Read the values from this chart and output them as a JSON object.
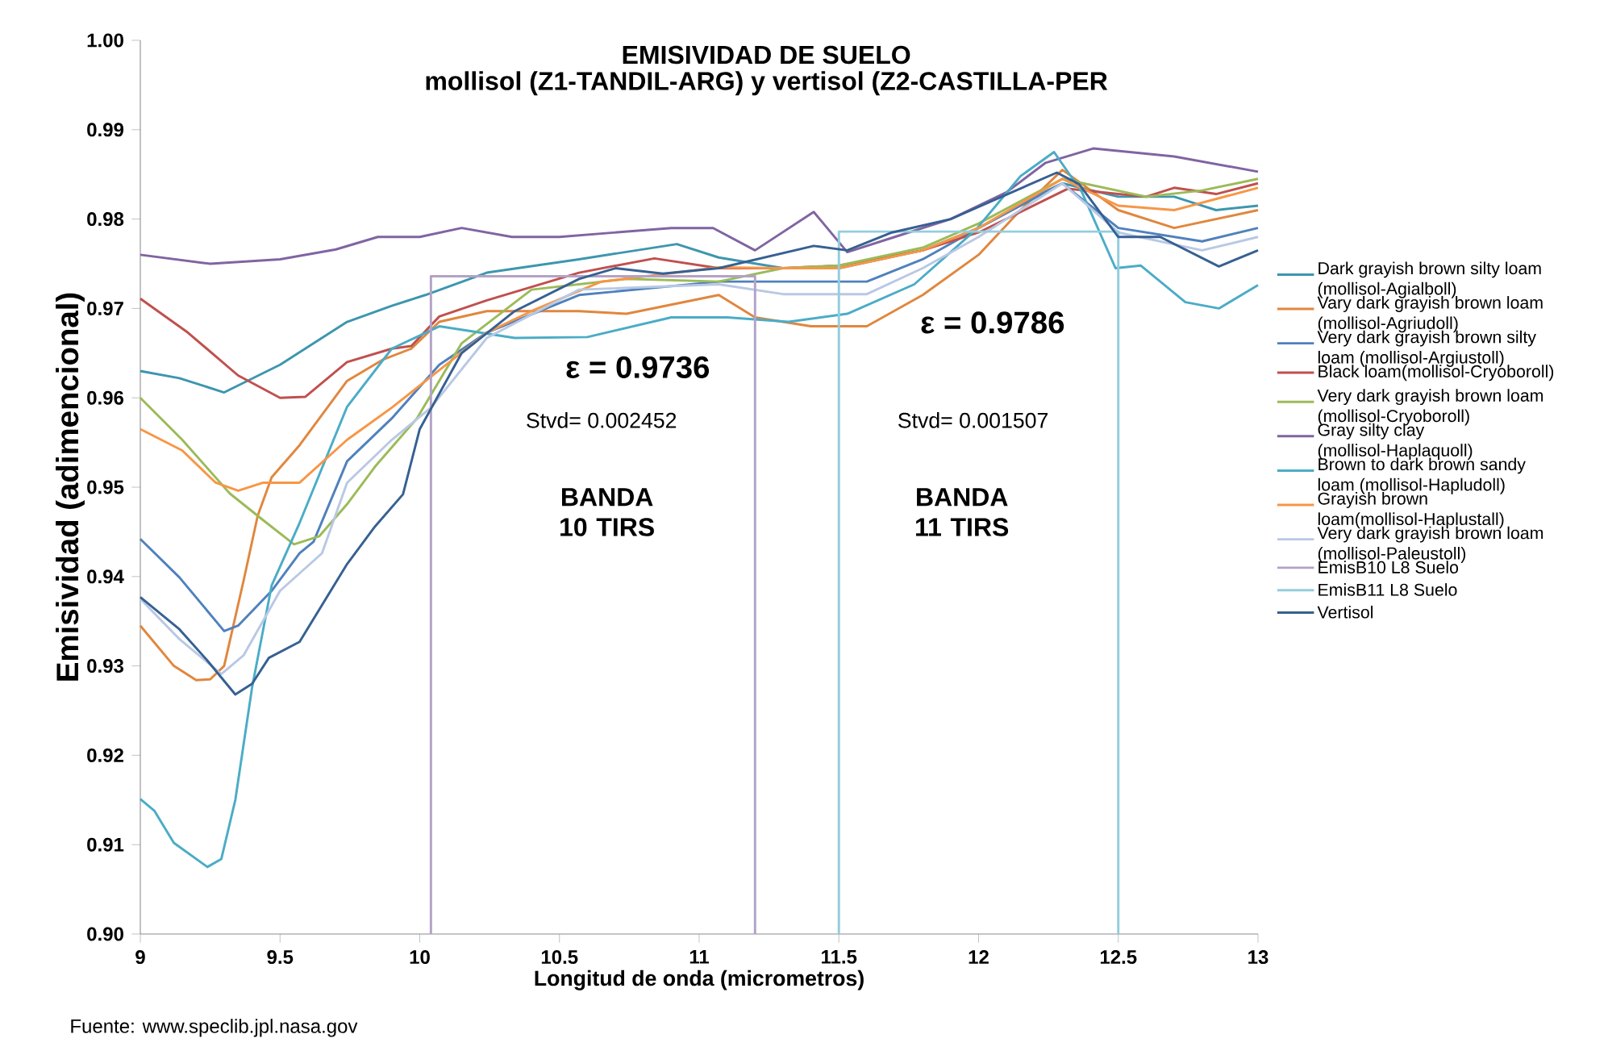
{
  "chart_data": {
    "type": "line",
    "title": "EMISIVIDAD DE SUELO",
    "subtitle": "mollisol (Z1-TANDIL-ARG) y vertisol (Z2-CASTILLA-PER",
    "xlabel": "Longitud de onda (micrometros)",
    "ylabel": "Emisividad (adimencional)",
    "xlim": [
      9,
      13
    ],
    "xticks": [
      9,
      9.5,
      10,
      10.5,
      11,
      11.5,
      12,
      12.5,
      13
    ],
    "ylim": [
      0.9,
      1.0
    ],
    "yticks": [
      {
        "value": 0.9,
        "label": "0.90"
      },
      {
        "value": 0.91,
        "label": "0.91"
      },
      {
        "value": 0.92,
        "label": "0.92"
      },
      {
        "value": 0.93,
        "label": "0.93"
      },
      {
        "value": 0.94,
        "label": "0.94"
      },
      {
        "value": 0.95,
        "label": "0.95"
      },
      {
        "value": 0.96,
        "label": "0.96"
      },
      {
        "value": 0.97,
        "label": "0.97"
      },
      {
        "value": 0.98,
        "label": "0.98"
      },
      {
        "value": 0.99,
        "label": "0.99"
      },
      {
        "value": 1.0,
        "label": "1.00"
      }
    ],
    "legend": "right",
    "marker": "none",
    "grid": false,
    "annotations": [
      {
        "text": "ε = 0.9736",
        "x": 10.78,
        "y": 0.9736
      },
      {
        "text": "ε = 0.9786",
        "x": 12.05,
        "y": 0.9786
      },
      "Stvd= 0.002452",
      "Stvd= 0.001507",
      "BANDA 10 TIRS",
      "BANDA 11 TIRS",
      "Fuente: www.speclib.jpl.nasa.gov"
    ],
    "series": [
      {
        "name": "Dark grayish brown silty loam (mollisol-Agialboll)",
        "color": "#3d96ae",
        "x": [
          9,
          9.14,
          9.3,
          9.5,
          9.74,
          9.9,
          10.02,
          10.24,
          10.57,
          10.92,
          11.07,
          11.3,
          11.5,
          11.8,
          12,
          12.2,
          12.3,
          12.5,
          12.7,
          12.85,
          13
        ],
        "values": [
          0.963,
          0.9622,
          0.9606,
          0.9637,
          0.9685,
          0.9703,
          0.9715,
          0.974,
          0.9755,
          0.9772,
          0.9757,
          0.9745,
          0.9745,
          0.9765,
          0.979,
          0.9825,
          0.984,
          0.9825,
          0.9825,
          0.981,
          0.9815
        ]
      },
      {
        "name": "Vary dark grayish brown loam (mollisol-Agriudoll)",
        "color": "#e0873e",
        "x": [
          9,
          9.12,
          9.2,
          9.25,
          9.3,
          9.37,
          9.42,
          9.47,
          9.57,
          9.74,
          9.87,
          9.97,
          10.07,
          10.24,
          10.57,
          10.74,
          11.07,
          11.2,
          11.4,
          11.6,
          11.8,
          12,
          12.15,
          12.3,
          12.5,
          12.7,
          13
        ],
        "values": [
          0.9345,
          0.93,
          0.9284,
          0.9285,
          0.93,
          0.9396,
          0.9468,
          0.9511,
          0.9547,
          0.9619,
          0.9643,
          0.9655,
          0.9685,
          0.9697,
          0.9697,
          0.9694,
          0.9715,
          0.969,
          0.968,
          0.968,
          0.9715,
          0.976,
          0.981,
          0.9855,
          0.981,
          0.979,
          0.981
        ]
      },
      {
        "name": "Very dark grayish brown silty loam  (mollisol-Argiustoll)",
        "color": "#4f81bd",
        "x": [
          9,
          9.14,
          9.3,
          9.35,
          9.47,
          9.57,
          9.62,
          9.74,
          9.9,
          10.07,
          10.24,
          10.57,
          11.07,
          11.3,
          11.6,
          11.8,
          12,
          12.3,
          12.5,
          12.8,
          13
        ],
        "values": [
          0.9442,
          0.9399,
          0.9339,
          0.9345,
          0.9384,
          0.9426,
          0.9439,
          0.9529,
          0.9577,
          0.9637,
          0.9673,
          0.9715,
          0.973,
          0.973,
          0.973,
          0.9755,
          0.979,
          0.984,
          0.979,
          0.9775,
          0.979
        ]
      },
      {
        "name": "Black loam(mollisol-Cryoboroll)",
        "color": "#c0504d",
        "x": [
          9,
          9.17,
          9.35,
          9.5,
          9.59,
          9.74,
          9.9,
          9.97,
          10.07,
          10.24,
          10.57,
          10.84,
          11.07,
          11.3,
          11.5,
          11.8,
          12,
          12.32,
          12.5,
          12.6,
          12.7,
          12.85,
          13
        ],
        "values": [
          0.9711,
          0.9673,
          0.9625,
          0.96,
          0.9601,
          0.964,
          0.9655,
          0.9658,
          0.9691,
          0.9709,
          0.974,
          0.9756,
          0.9745,
          0.9745,
          0.9748,
          0.9765,
          0.9785,
          0.9834,
          0.9828,
          0.9825,
          0.9835,
          0.9828,
          0.984
        ]
      },
      {
        "name": "Very dark grayish brown loam (mollisol-Cryoboroll)",
        "color": "#9bbb59",
        "x": [
          9,
          9.15,
          9.32,
          9.44,
          9.55,
          9.64,
          9.74,
          9.84,
          9.99,
          10.15,
          10.4,
          10.74,
          11.07,
          11.3,
          11.5,
          11.8,
          12,
          12.3,
          12.6,
          12.8,
          13
        ],
        "values": [
          0.96,
          0.9553,
          0.9493,
          0.9463,
          0.9436,
          0.9445,
          0.9481,
          0.9523,
          0.9577,
          0.9661,
          0.9721,
          0.9733,
          0.973,
          0.9745,
          0.9748,
          0.9768,
          0.9795,
          0.9845,
          0.9825,
          0.9832,
          0.9845
        ]
      },
      {
        "name": "Gray silty clay  (mollisol-Haplaquoll)",
        "color": "#8064a2",
        "x": [
          9,
          9.25,
          9.5,
          9.7,
          9.85,
          10,
          10.15,
          10.33,
          10.5,
          10.9,
          11.05,
          11.2,
          11.41,
          11.53,
          11.7,
          11.9,
          12.1,
          12.24,
          12.41,
          12.7,
          13
        ],
        "values": [
          0.976,
          0.975,
          0.9755,
          0.9766,
          0.978,
          0.978,
          0.979,
          0.978,
          0.978,
          0.979,
          0.979,
          0.9765,
          0.9808,
          0.9763,
          0.978,
          0.98,
          0.983,
          0.9863,
          0.9879,
          0.987,
          0.9853
        ]
      },
      {
        "name": "Brown to dark brown sandy loam (mollisol-Hapludoll)",
        "color": "#4bacc6",
        "x": [
          9,
          9.05,
          9.12,
          9.24,
          9.29,
          9.34,
          9.4,
          9.47,
          9.57,
          9.74,
          9.9,
          10.07,
          10.34,
          10.6,
          10.9,
          11.1,
          11.32,
          11.53,
          11.77,
          11.99,
          12.15,
          12.27,
          12.37,
          12.49,
          12.58,
          12.74,
          12.86,
          13
        ],
        "values": [
          0.9151,
          0.9138,
          0.9102,
          0.9075,
          0.9084,
          0.915,
          0.9276,
          0.939,
          0.946,
          0.959,
          0.9655,
          0.968,
          0.9667,
          0.9668,
          0.969,
          0.969,
          0.9685,
          0.9694,
          0.9727,
          0.9788,
          0.9848,
          0.9875,
          0.983,
          0.9745,
          0.9748,
          0.9707,
          0.97,
          0.9726
        ]
      },
      {
        "name": "Grayish brown loam(mollisol-Haplustall)",
        "color": "#f79646",
        "x": [
          9,
          9.15,
          9.27,
          9.35,
          9.44,
          9.57,
          9.74,
          9.9,
          10.07,
          10.24,
          10.4,
          10.65,
          11.07,
          11.3,
          11.5,
          11.8,
          12,
          12.3,
          12.5,
          12.7,
          13
        ],
        "values": [
          0.9565,
          0.9541,
          0.9505,
          0.9496,
          0.9505,
          0.9505,
          0.9553,
          0.9589,
          0.9631,
          0.9673,
          0.9697,
          0.973,
          0.9746,
          0.9745,
          0.9745,
          0.9765,
          0.979,
          0.9845,
          0.9815,
          0.981,
          0.9835
        ]
      },
      {
        "name": "Very dark grayish brown loam (mollisol-Paleustoll)",
        "color": "#b9c8e4",
        "x": [
          9,
          9.14,
          9.29,
          9.37,
          9.5,
          9.65,
          9.74,
          9.9,
          10.04,
          10.24,
          10.57,
          11.07,
          11.3,
          11.6,
          11.8,
          12,
          12.3,
          12.5,
          12.8,
          13
        ],
        "values": [
          0.9375,
          0.933,
          0.9291,
          0.9312,
          0.9384,
          0.9426,
          0.9505,
          0.9553,
          0.9589,
          0.9667,
          0.9721,
          0.9727,
          0.9716,
          0.9716,
          0.9745,
          0.978,
          0.984,
          0.9785,
          0.9765,
          0.978
        ]
      },
      {
        "name": "EmisB10 L8 Suelo",
        "color": "#b3a2c7",
        "x": [
          10.04,
          10.04,
          11.2,
          11.2
        ],
        "values": [
          0.9,
          0.9736,
          0.9736,
          0.9
        ]
      },
      {
        "name": "EmisB11 L8 Suelo",
        "color": "#93cddd",
        "x": [
          11.5,
          11.5,
          12.5,
          12.5
        ],
        "values": [
          0.9,
          0.9786,
          0.9786,
          0.9
        ]
      },
      {
        "name": "Vertisol",
        "color": "#376092",
        "x": [
          9,
          9.14,
          9.24,
          9.34,
          9.4,
          9.46,
          9.57,
          9.74,
          9.84,
          9.94,
          10,
          10.15,
          10.34,
          10.57,
          10.7,
          10.87,
          11.07,
          11.41,
          11.53,
          11.69,
          11.9,
          12.28,
          12.36,
          12.5,
          12.65,
          12.86,
          13
        ],
        "values": [
          0.9377,
          0.9341,
          0.9306,
          0.9268,
          0.928,
          0.9309,
          0.9327,
          0.9414,
          0.9456,
          0.9492,
          0.9565,
          0.965,
          0.9697,
          0.9733,
          0.9745,
          0.9739,
          0.9745,
          0.977,
          0.9765,
          0.9785,
          0.98,
          0.9852,
          0.9839,
          0.978,
          0.978,
          0.9747,
          0.9765
        ]
      }
    ]
  }
}
